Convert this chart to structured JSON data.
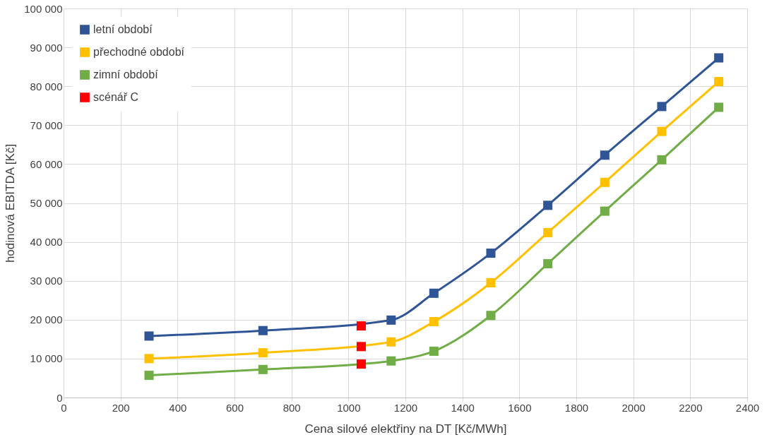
{
  "chart_data": {
    "type": "line",
    "xlabel": "Cena silové elektřiny na DT [Kč/MWh]",
    "ylabel": "hodinová EBITDA [Kč]",
    "xlim": [
      0,
      2400
    ],
    "xticks": [
      0,
      200,
      400,
      600,
      800,
      1000,
      1200,
      1400,
      1600,
      1800,
      2000,
      2200,
      2400
    ],
    "ylim": [
      0,
      100000
    ],
    "yticks": [
      {
        "value": 0,
        "label": "0"
      },
      {
        "value": 10000,
        "label": "10 000"
      },
      {
        "value": 20000,
        "label": "20 000"
      },
      {
        "value": 30000,
        "label": "30 000"
      },
      {
        "value": 40000,
        "label": "40 000"
      },
      {
        "value": 50000,
        "label": "50 000"
      },
      {
        "value": 60000,
        "label": "60 000"
      },
      {
        "value": 70000,
        "label": "70 000"
      },
      {
        "value": 80000,
        "label": "80 000"
      },
      {
        "value": 90000,
        "label": "90 000"
      },
      {
        "value": 100000,
        "label": "100 000"
      }
    ],
    "grid": true,
    "legend": "top left",
    "marker": "square",
    "line_style": "solid",
    "series": [
      {
        "name": "letní období",
        "color": "#2f5597",
        "type": "line",
        "x": [
          300,
          700,
          1150,
          1300,
          1500,
          1700,
          1900,
          2100,
          2300
        ],
        "values": [
          15800,
          17200,
          19900,
          26800,
          37100,
          49400,
          62300,
          74800,
          87300
        ]
      },
      {
        "name": "přechodné období",
        "color": "#ffc000",
        "type": "line",
        "x": [
          300,
          700,
          1150,
          1300,
          1500,
          1700,
          1900,
          2100,
          2300
        ],
        "values": [
          10000,
          11500,
          14300,
          19500,
          29500,
          42400,
          55300,
          68400,
          81200
        ]
      },
      {
        "name": "zimní období",
        "color": "#70ad47",
        "type": "line",
        "x": [
          300,
          700,
          1150,
          1300,
          1500,
          1700,
          1900,
          2100,
          2300
        ],
        "values": [
          5700,
          7200,
          9400,
          11900,
          21100,
          34400,
          47900,
          61100,
          74600
        ]
      },
      {
        "name": "scénář C",
        "color": "#ff0000",
        "type": "scatter",
        "x": [
          1045,
          1045,
          1045
        ],
        "values": [
          18400,
          13100,
          8600
        ]
      }
    ]
  }
}
